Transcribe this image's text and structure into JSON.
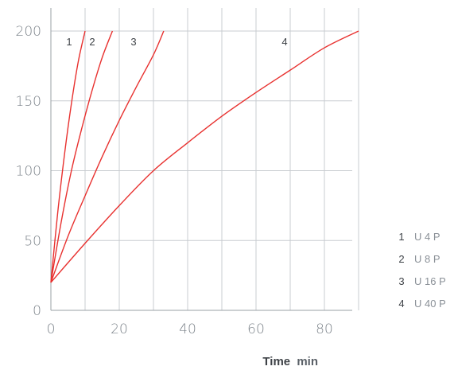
{
  "chart_data": {
    "type": "line",
    "xlabel": "Time",
    "xunit": "min",
    "ylabel": "",
    "xlim": [
      0,
      95
    ],
    "ylim": [
      0,
      220
    ],
    "grid": true,
    "xticks": [
      0,
      20,
      40,
      60,
      80
    ],
    "yticks": [
      0,
      50,
      100,
      150,
      200
    ],
    "colors": {
      "line": "#e8312f",
      "grid": "#c8ccd0",
      "axis": "#9aa0a6"
    },
    "series": [
      {
        "label": "1",
        "name": "U 4 P",
        "x": [
          0,
          2,
          4,
          6,
          8,
          10
        ],
        "y": [
          20,
          70,
          112,
          148,
          178,
          200
        ]
      },
      {
        "label": "2",
        "name": "U 8 P",
        "x": [
          0,
          3,
          6,
          9,
          12,
          15,
          18
        ],
        "y": [
          20,
          63,
          100,
          130,
          157,
          181,
          200
        ]
      },
      {
        "label": "3",
        "name": "U 16 P",
        "x": [
          0,
          5,
          10,
          15,
          20,
          25,
          30,
          33
        ],
        "y": [
          20,
          53,
          82,
          110,
          136,
          160,
          183,
          200
        ]
      },
      {
        "label": "4",
        "name": "U 40 P",
        "x": [
          0,
          10,
          20,
          30,
          40,
          50,
          60,
          70,
          80,
          90
        ],
        "y": [
          20,
          48,
          75,
          100,
          120,
          139,
          156,
          172,
          188,
          200
        ]
      }
    ]
  }
}
